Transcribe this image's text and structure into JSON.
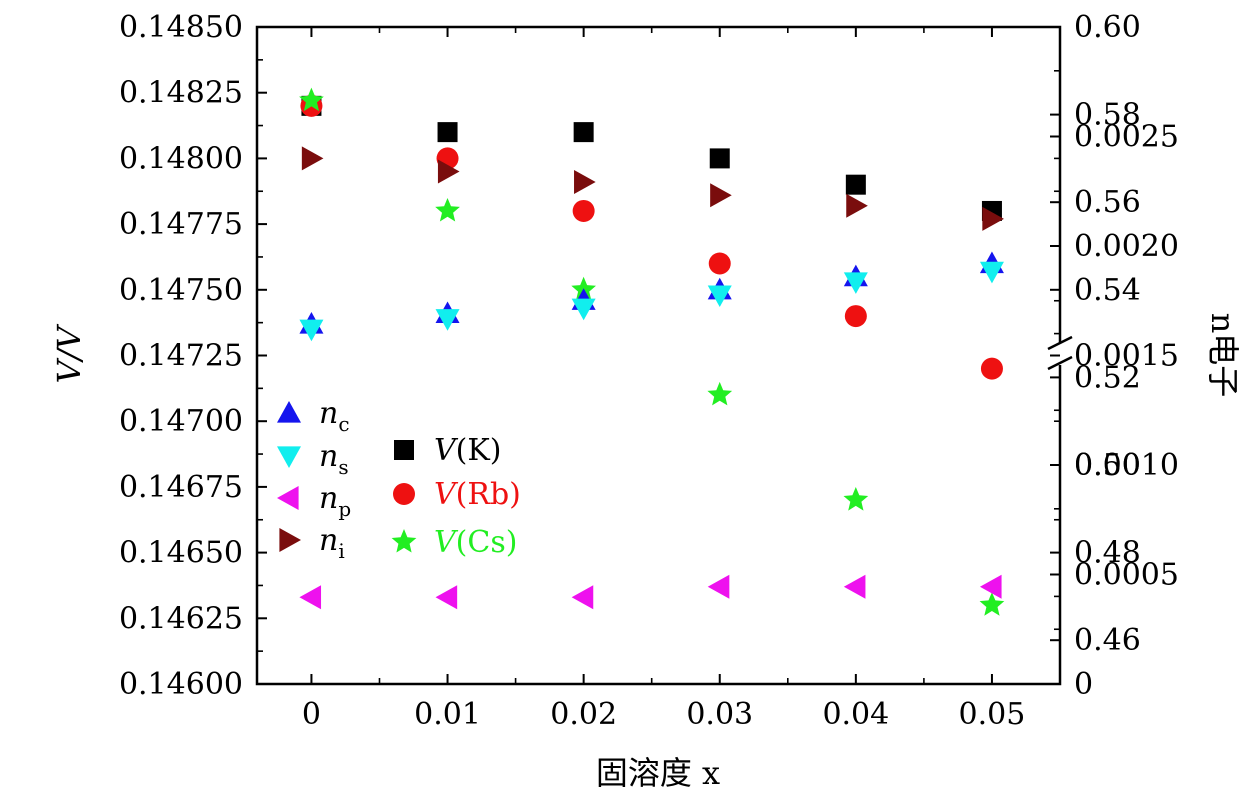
{
  "chart_data": {
    "type": "scatter",
    "xlabel": "固溶度 x",
    "ylabel_left": "V/V",
    "ylabel_right": "n电子",
    "x": [
      0,
      0.01,
      0.02,
      0.03,
      0.04,
      0.05
    ],
    "xlim": [
      -0.004,
      0.055
    ],
    "xtick_labels": [
      "0",
      "0.01",
      "0.02",
      "0.03",
      "0.04",
      "0.05"
    ],
    "left_axis": {
      "ylim": [
        0.146,
        0.1485
      ],
      "tick_labels": [
        "0.14600",
        "0.14625",
        "0.14650",
        "0.14675",
        "0.14700",
        "0.14725",
        "0.14750",
        "0.14775",
        "0.14800",
        "0.14825",
        "0.14850"
      ]
    },
    "right_axis": {
      "upper": {
        "ylim": [
          0.45,
          0.6
        ],
        "tick_labels": [
          "0.46",
          "0.48",
          "0.50",
          "0.52",
          "0.54",
          "0.56",
          "0.58",
          "0.60"
        ]
      },
      "lower": {
        "ylim": [
          0,
          0.003
        ],
        "tick_labels": [
          "0",
          "0.0005",
          "0.0010",
          "0.0015",
          "0.0020",
          "0.0025"
        ]
      },
      "break": true
    },
    "series": [
      {
        "name": "V(K)",
        "label_main": "V",
        "label_sub": "(K)",
        "axis": "left",
        "marker": "square",
        "color": "#000000",
        "values": [
          0.1482,
          0.1481,
          0.1481,
          0.148,
          0.1479,
          0.1478
        ]
      },
      {
        "name": "V(Rb)",
        "label_main": "V",
        "label_sub": "(Rb)",
        "axis": "left",
        "marker": "circle",
        "color": "#ee1111",
        "values": [
          0.1482,
          0.148,
          0.1478,
          0.1476,
          0.1474,
          0.1472
        ]
      },
      {
        "name": "V(Cs)",
        "label_main": "V",
        "label_sub": "(Cs)",
        "axis": "left",
        "marker": "star",
        "color": "#22ee22",
        "values": [
          0.14822,
          0.1478,
          0.1475,
          0.1471,
          0.1467,
          0.1463
        ]
      },
      {
        "name": "nc",
        "label_main": "n",
        "label_sub": "c",
        "axis": "left",
        "marker": "tri-up",
        "color": "#1515ee",
        "values": [
          0.14737,
          0.14741,
          0.14746,
          0.1475,
          0.14755,
          0.1476
        ]
      },
      {
        "name": "ns",
        "label_main": "n",
        "label_sub": "s",
        "axis": "left",
        "marker": "tri-down",
        "color": "#11eeee",
        "values": [
          0.14735,
          0.14739,
          0.14743,
          0.14748,
          0.14753,
          0.14757
        ]
      },
      {
        "name": "np",
        "label_main": "n",
        "label_sub": "p",
        "axis": "left",
        "marker": "tri-left",
        "color": "#ee11ee",
        "values": [
          0.14633,
          0.14633,
          0.14633,
          0.14637,
          0.14637,
          0.14637
        ]
      },
      {
        "name": "ni",
        "label_main": "n",
        "label_sub": "i",
        "axis": "left",
        "marker": "tri-right",
        "color": "#7a0d0d",
        "values": [
          0.148,
          0.14795,
          0.14791,
          0.14786,
          0.14782,
          0.14777
        ]
      }
    ],
    "legend_left": [
      "nc",
      "ns",
      "np",
      "ni"
    ],
    "legend_right": [
      "V(K)",
      "V(Rb)",
      "V(Cs)"
    ],
    "legend_placement": "lower-left inside"
  }
}
